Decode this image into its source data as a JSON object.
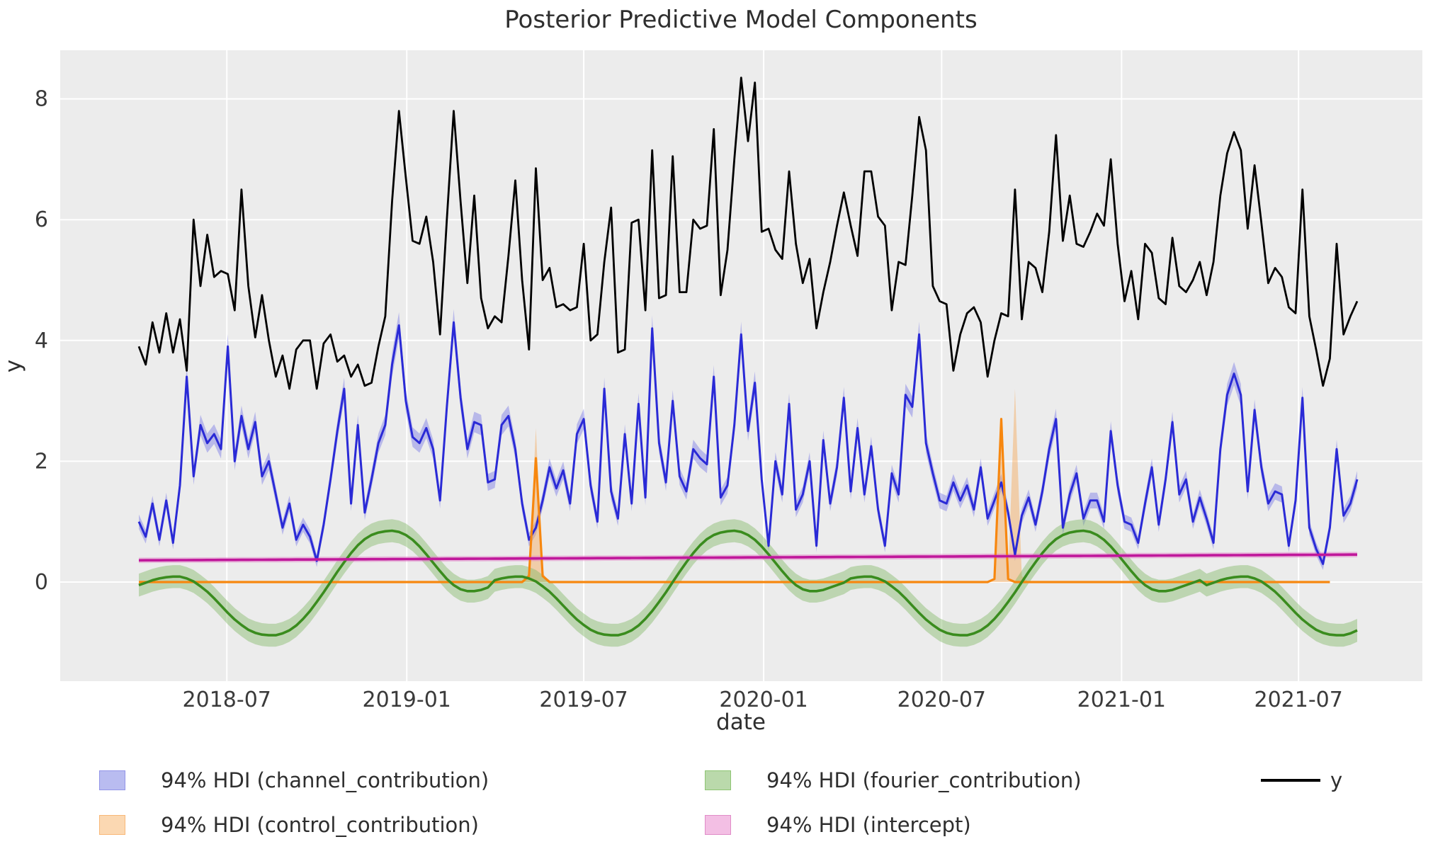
{
  "title": "Posterior Predictive Model Components",
  "axes": {
    "xlabel": "date",
    "ylabel": "y",
    "ytick_values": [
      0,
      2,
      4,
      6,
      8
    ],
    "ytick_labels": [
      "0",
      "2",
      "4",
      "6",
      "8"
    ],
    "xticks": [
      {
        "label": "2018-07",
        "date": "2018-07-01"
      },
      {
        "label": "2019-01",
        "date": "2019-01-01"
      },
      {
        "label": "2019-07",
        "date": "2019-07-01"
      },
      {
        "label": "2020-01",
        "date": "2020-01-01"
      },
      {
        "label": "2020-07",
        "date": "2020-07-01"
      },
      {
        "label": "2021-01",
        "date": "2021-01-01"
      },
      {
        "label": "2021-07",
        "date": "2021-07-01"
      }
    ],
    "grid": true,
    "plot_background": "#ececec",
    "grid_color": "#ffffff"
  },
  "legend": {
    "items": [
      {
        "label": "94% HDI (channel_contribution)",
        "type": "patch",
        "fill": "#b9bcf0",
        "edge": "#9395e8"
      },
      {
        "label": "94% HDI (control_contribution)",
        "type": "patch",
        "fill": "#fbd8b2",
        "edge": "#f8b878"
      },
      {
        "label": "94% HDI (fourier_contribution)",
        "type": "patch",
        "fill": "#bad9ab",
        "edge": "#8ec573"
      },
      {
        "label": "94% HDI (intercept)",
        "type": "patch",
        "fill": "#f3bfe4",
        "edge": "#e08cc8"
      },
      {
        "label": "y",
        "type": "line",
        "color": "#000000"
      }
    ]
  },
  "chart_data": {
    "type": "line",
    "title": "Posterior Predictive Model Components",
    "xlabel": "date",
    "ylabel": "y",
    "x_start_date": "2018-04-02",
    "x_step_days": 7,
    "n_points": 179,
    "ylim": [
      -1.62,
      8.82
    ],
    "legend_position": "below",
    "series": {
      "y": {
        "name": "y",
        "color": "#000000",
        "values": [
          3.9,
          3.6,
          4.3,
          3.8,
          4.45,
          3.8,
          4.35,
          3.5,
          6.0,
          4.9,
          5.75,
          5.05,
          5.15,
          5.1,
          4.5,
          6.5,
          4.9,
          4.05,
          4.75,
          4.0,
          3.4,
          3.75,
          3.2,
          3.85,
          4.0,
          4.0,
          3.2,
          3.95,
          4.1,
          3.65,
          3.75,
          3.4,
          3.6,
          3.25,
          3.3,
          3.9,
          4.4,
          6.3,
          7.8,
          6.7,
          5.65,
          5.6,
          6.05,
          5.3,
          4.1,
          6.0,
          7.8,
          6.3,
          4.95,
          6.4,
          4.7,
          4.2,
          4.4,
          4.3,
          5.4,
          6.65,
          5.0,
          3.85,
          6.85,
          5.0,
          5.2,
          4.55,
          4.6,
          4.5,
          4.55,
          5.6,
          4.0,
          4.1,
          5.3,
          6.2,
          3.8,
          3.85,
          5.95,
          6.0,
          4.5,
          7.15,
          4.7,
          4.75,
          7.05,
          4.8,
          4.8,
          6.0,
          5.85,
          5.9,
          7.5,
          4.75,
          5.5,
          7.0,
          8.35,
          7.3,
          8.27,
          5.8,
          5.85,
          5.5,
          5.35,
          6.8,
          5.6,
          4.95,
          5.35,
          4.2,
          4.8,
          5.3,
          5.9,
          6.45,
          5.9,
          5.4,
          6.8,
          6.8,
          6.05,
          5.9,
          4.5,
          5.3,
          5.25,
          6.4,
          7.7,
          7.15,
          4.9,
          4.65,
          4.6,
          3.5,
          4.1,
          4.45,
          4.55,
          4.3,
          3.4,
          4.0,
          4.45,
          4.4,
          6.5,
          4.35,
          5.3,
          5.2,
          4.8,
          5.8,
          7.4,
          5.65,
          6.4,
          5.6,
          5.55,
          5.8,
          6.1,
          5.9,
          7.0,
          5.6,
          4.65,
          5.15,
          4.35,
          5.6,
          5.45,
          4.7,
          4.6,
          5.7,
          4.9,
          4.8,
          5.0,
          5.3,
          4.75,
          5.3,
          6.4,
          7.1,
          7.45,
          7.15,
          5.85,
          6.9,
          5.95,
          4.95,
          5.2,
          5.05,
          4.55,
          4.45,
          6.5,
          4.4,
          3.85,
          3.25,
          3.7,
          5.6,
          4.1,
          4.4,
          4.65
        ]
      },
      "channel_contribution": {
        "name": "channel_contribution",
        "hdi": "94%",
        "line_color": "#2a2ad6",
        "band_color": "rgba(122,122,230,0.45)",
        "band_halfwidth_base": 0.09,
        "band_halfwidth_scale": 0.03,
        "values": [
          1.0,
          0.75,
          1.3,
          0.7,
          1.35,
          0.65,
          1.6,
          3.4,
          1.75,
          2.6,
          2.3,
          2.45,
          2.2,
          3.9,
          2.0,
          2.75,
          2.2,
          2.65,
          1.75,
          2.0,
          1.45,
          0.9,
          1.3,
          0.7,
          0.95,
          0.75,
          0.35,
          0.95,
          1.7,
          2.5,
          3.2,
          1.3,
          2.6,
          1.15,
          1.7,
          2.3,
          2.6,
          3.6,
          4.25,
          3.0,
          2.4,
          2.3,
          2.55,
          2.2,
          1.35,
          2.9,
          4.3,
          3.05,
          2.2,
          2.65,
          2.6,
          1.65,
          1.7,
          2.6,
          2.75,
          2.2,
          1.3,
          0.7,
          0.9,
          1.35,
          1.9,
          1.55,
          1.85,
          1.3,
          2.45,
          2.7,
          1.6,
          1.0,
          3.2,
          1.5,
          1.05,
          2.45,
          1.3,
          2.95,
          1.4,
          4.2,
          2.3,
          1.65,
          3.0,
          1.75,
          1.5,
          2.2,
          2.05,
          1.95,
          3.4,
          1.4,
          1.6,
          2.6,
          4.1,
          2.5,
          3.3,
          1.7,
          0.6,
          2.0,
          1.45,
          2.95,
          1.2,
          1.45,
          2.0,
          0.6,
          2.35,
          1.3,
          1.9,
          3.05,
          1.5,
          2.55,
          1.45,
          2.25,
          1.2,
          0.6,
          1.8,
          1.45,
          3.1,
          2.9,
          4.1,
          2.3,
          1.8,
          1.35,
          1.3,
          1.65,
          1.35,
          1.6,
          1.2,
          1.9,
          1.05,
          1.35,
          1.65,
          1.15,
          0.45,
          1.1,
          1.4,
          0.95,
          1.5,
          2.2,
          2.7,
          0.9,
          1.45,
          1.8,
          1.05,
          1.35,
          1.35,
          1.0,
          2.5,
          1.6,
          1.0,
          0.95,
          0.65,
          1.3,
          1.9,
          0.95,
          1.7,
          2.65,
          1.45,
          1.7,
          1.0,
          1.4,
          1.05,
          0.65,
          2.2,
          3.1,
          3.45,
          3.1,
          1.5,
          2.85,
          1.9,
          1.3,
          1.5,
          1.45,
          0.6,
          1.35,
          3.05,
          0.9,
          0.55,
          0.3,
          0.9,
          2.2,
          1.1,
          1.3,
          1.7
        ]
      },
      "control_contribution": {
        "name": "control_contribution",
        "hdi": "94%",
        "line_color": "#f7870f",
        "band_color": "rgba(248,160,70,0.4)",
        "values": [
          0,
          0,
          0,
          0,
          0,
          0,
          0,
          0,
          0,
          0,
          0,
          0,
          0,
          0,
          0,
          0,
          0,
          0,
          0,
          0,
          0,
          0,
          0,
          0,
          0,
          0,
          0,
          0,
          0,
          0,
          0,
          0,
          0,
          0,
          0,
          0,
          0,
          0,
          0,
          0,
          0,
          0,
          0,
          0,
          0,
          0,
          0,
          0,
          0,
          0,
          0,
          0,
          0,
          0,
          0,
          0,
          0,
          0.1,
          2.05,
          0.1,
          0,
          0,
          0,
          0,
          0,
          0,
          0,
          0,
          0,
          0,
          0,
          0,
          0,
          0,
          0,
          0,
          0,
          0,
          0,
          0,
          0,
          0,
          0,
          0,
          0,
          0,
          0,
          0,
          0,
          0,
          0,
          0,
          0,
          0,
          0,
          0,
          0,
          0,
          0,
          0,
          0,
          0,
          0,
          0,
          0,
          0,
          0,
          0,
          0,
          0,
          0,
          0,
          0,
          0,
          0,
          0,
          0,
          0,
          0,
          0,
          0,
          0,
          0,
          0,
          0,
          0.05,
          2.7,
          0.05,
          0,
          0,
          0,
          0,
          0,
          0,
          0,
          0,
          0,
          0,
          0,
          0,
          0,
          0,
          0,
          0,
          0,
          0,
          0,
          0,
          0,
          0,
          0,
          0,
          0,
          0,
          0,
          0,
          0,
          0,
          0,
          0,
          0,
          0,
          0,
          0,
          0,
          0,
          0,
          0,
          0,
          0,
          0,
          0,
          0,
          0,
          0
        ],
        "band_upper_overrides": {
          "57": 0.15,
          "58": 2.55,
          "59": 0.15,
          "127": 0.1,
          "128": 3.2,
          "129": 0.1
        }
      },
      "fourier_contribution": {
        "name": "fourier_contribution",
        "hdi": "94%",
        "line_color": "#3a8c1e",
        "band_color": "rgba(125,180,95,0.42)",
        "band_halfwidth": 0.19,
        "values": [
          -0.05,
          -0.01,
          0.03,
          0.06,
          0.08,
          0.09,
          0.09,
          0.06,
          0.01,
          -0.07,
          -0.16,
          -0.27,
          -0.39,
          -0.51,
          -0.62,
          -0.71,
          -0.79,
          -0.84,
          -0.87,
          -0.88,
          -0.88,
          -0.85,
          -0.8,
          -0.72,
          -0.61,
          -0.48,
          -0.33,
          -0.17,
          0,
          0.17,
          0.33,
          0.48,
          0.61,
          0.71,
          0.78,
          0.82,
          0.84,
          0.85,
          0.83,
          0.78,
          0.7,
          0.59,
          0.46,
          0.32,
          0.18,
          0.05,
          -0.05,
          -0.12,
          -0.15,
          -0.15,
          -0.13,
          -0.09,
          0.03,
          0.06,
          0.08,
          0.09,
          0.09,
          0.06,
          0.01,
          -0.07,
          -0.16,
          -0.27,
          -0.39,
          -0.51,
          -0.62,
          -0.71,
          -0.79,
          -0.84,
          -0.87,
          -0.88,
          -0.88,
          -0.85,
          -0.8,
          -0.72,
          -0.61,
          -0.48,
          -0.33,
          -0.17,
          0,
          0.17,
          0.33,
          0.48,
          0.61,
          0.71,
          0.78,
          0.82,
          0.84,
          0.85,
          0.83,
          0.78,
          0.7,
          0.59,
          0.46,
          0.32,
          0.18,
          0.05,
          -0.05,
          -0.12,
          -0.15,
          -0.15,
          -0.13,
          -0.09,
          -0.05,
          -0.01,
          0.06,
          0.08,
          0.09,
          0.09,
          0.06,
          0.01,
          -0.07,
          -0.16,
          -0.27,
          -0.39,
          -0.51,
          -0.62,
          -0.71,
          -0.79,
          -0.84,
          -0.87,
          -0.88,
          -0.88,
          -0.85,
          -0.8,
          -0.72,
          -0.61,
          -0.48,
          -0.33,
          -0.17,
          0,
          0.17,
          0.33,
          0.48,
          0.61,
          0.71,
          0.78,
          0.82,
          0.84,
          0.85,
          0.83,
          0.78,
          0.7,
          0.59,
          0.46,
          0.32,
          0.18,
          0.05,
          -0.05,
          -0.12,
          -0.15,
          -0.15,
          -0.13,
          -0.09,
          -0.05,
          -0.01,
          0.03,
          -0.05,
          -0.01,
          0.03,
          0.06,
          0.08,
          0.09,
          0.09,
          0.06,
          0.01,
          -0.07,
          -0.16,
          -0.27,
          -0.39,
          -0.51,
          -0.62,
          -0.71,
          -0.79,
          -0.84,
          -0.87,
          -0.88,
          -0.88,
          -0.85,
          -0.8
        ]
      },
      "intercept": {
        "name": "intercept",
        "hdi": "94%",
        "line_color": "#c0189b",
        "band_color": "rgba(225,130,200,0.5)",
        "start_value": 0.36,
        "end_value": 0.455,
        "band_halfwidth": 0.045
      }
    }
  }
}
